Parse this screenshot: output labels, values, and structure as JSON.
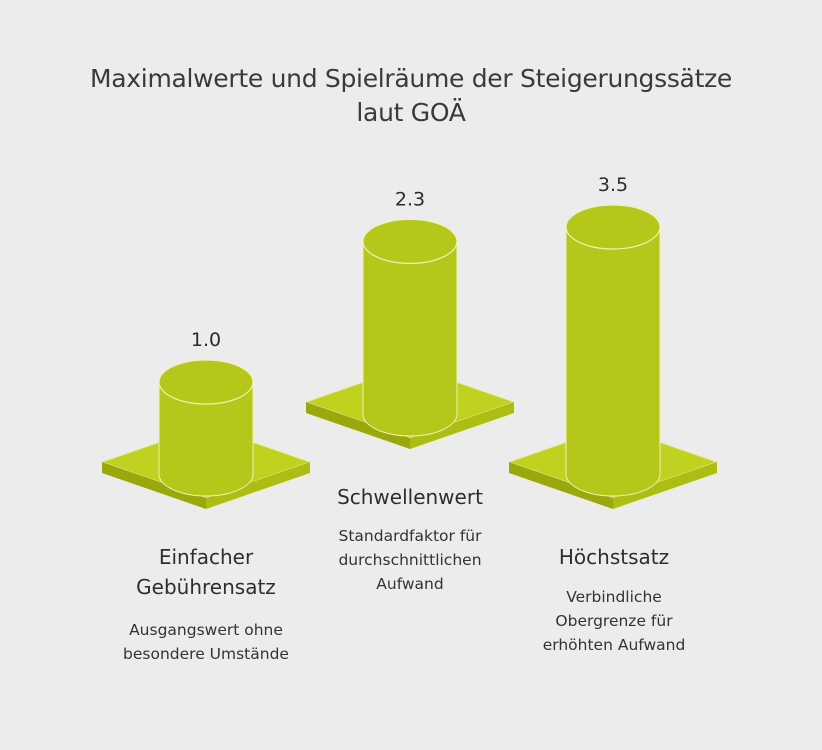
{
  "chart_data": {
    "type": "bar",
    "title_lines": [
      "Maximalwerte und Spielräume der Steigerungssätze",
      "laut GOÄ"
    ],
    "categories": [
      "Einfacher Gebührensatz",
      "Schwellenwert",
      "Höchstsatz"
    ],
    "values": [
      1.0,
      2.3,
      3.5
    ],
    "value_labels": [
      "1.0",
      "2.3",
      "3.5"
    ],
    "descriptions": [
      "Ausgangswert ohne besondere Umstände",
      "Standardfaktor für durchschnittlichen Aufwand",
      "Verbindliche Obergrenze für erhöhten Aufwand"
    ],
    "bar_color": "#b5c71a",
    "base_color": "#c1d11f",
    "background_color": "#ececec"
  },
  "labels": {
    "cat0": [
      "Einfacher",
      "Gebührensatz"
    ],
    "cat1": [
      "Schwellenwert"
    ],
    "cat2": [
      "Höchstsatz"
    ],
    "desc0": [
      "Ausgangswert ohne",
      "besondere Umstände"
    ],
    "desc1": [
      "Standardfaktor für",
      "durchschnittlichen",
      "Aufwand"
    ],
    "desc2": [
      "Verbindliche",
      "Obergrenze für",
      "erhöhten Aufwand"
    ]
  }
}
